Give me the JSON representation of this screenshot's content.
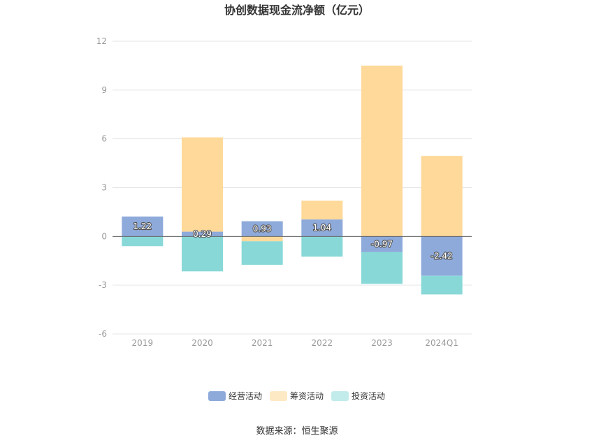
{
  "chart_data": {
    "type": "bar",
    "stacked": true,
    "title": "协创数据现金流净额（亿元）",
    "categories": [
      "2019",
      "2020",
      "2021",
      "2022",
      "2023",
      "2024Q1"
    ],
    "series": [
      {
        "name": "经营活动",
        "color": "#8eaadb",
        "values": [
          1.22,
          0.29,
          0.93,
          1.04,
          -0.97,
          -2.42
        ]
      },
      {
        "name": "筹资活动",
        "color": "#ffd999",
        "values": [
          0,
          5.8,
          -0.3,
          1.15,
          10.5,
          4.95
        ]
      },
      {
        "name": "投资活动",
        "color": "#88d8d8",
        "values": [
          -0.6,
          -2.15,
          -1.45,
          -1.25,
          -1.95,
          -1.15
        ]
      }
    ],
    "data_labels_series": "经营活动",
    "data_labels": [
      "1.22",
      "0.29",
      "0.93",
      "1.04",
      "-0.97",
      "-2.42"
    ],
    "ylim": [
      -6,
      12
    ],
    "yticks": [
      -6,
      -3,
      0,
      3,
      6,
      9,
      12
    ],
    "grid": true,
    "legend_position": "bottom"
  },
  "legend": {
    "swatch_colors": [
      "#8eaadb",
      "#fde9c4",
      "#c2ebeb"
    ]
  },
  "source": "数据来源：恒生聚源"
}
